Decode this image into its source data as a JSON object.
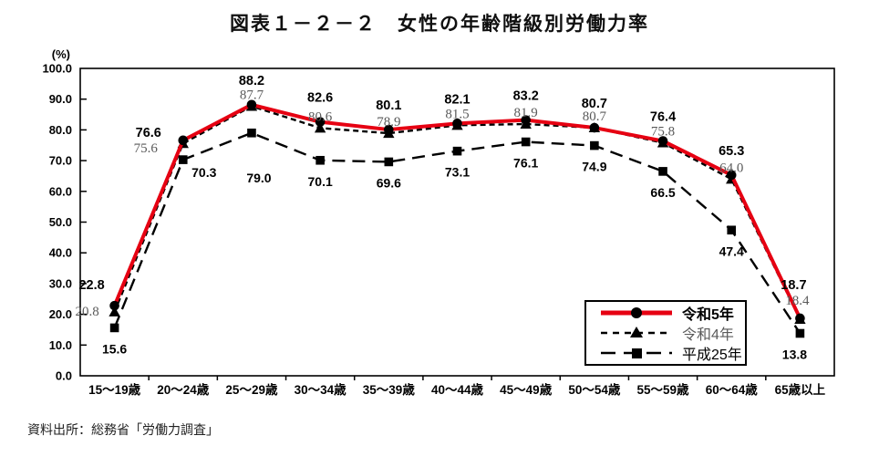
{
  "title": "図表１－２－２　女性の年齢階級別労働力率",
  "source": "資料出所：総務省「労働力調査」",
  "chart_data": {
    "type": "line",
    "title": "図表１－２－２　女性の年齢階級別労働力率",
    "unit_label": "(%)",
    "categories": [
      "15～19歳",
      "20～24歳",
      "25～29歳",
      "30～34歳",
      "35～39歳",
      "40～44歳",
      "45～49歳",
      "50～54歳",
      "55～59歳",
      "60～64歳",
      "65歳以上"
    ],
    "series": [
      {
        "name": "令和5年",
        "values": [
          22.8,
          76.6,
          88.2,
          82.6,
          80.1,
          82.1,
          83.2,
          80.7,
          76.4,
          65.3,
          18.7
        ],
        "line_color": "#e60012",
        "line_style": "solid",
        "marker": "circle",
        "marker_color": "#000000",
        "label_color": "#000000"
      },
      {
        "name": "令和4年",
        "values": [
          20.8,
          75.6,
          87.7,
          80.6,
          78.9,
          81.5,
          81.9,
          80.7,
          75.8,
          64.0,
          18.4
        ],
        "line_color": "#000000",
        "line_style": "short-dash",
        "marker": "triangle",
        "marker_color": "#000000",
        "label_color": "#5a5a5a"
      },
      {
        "name": "平成25年",
        "values": [
          15.6,
          70.3,
          79.0,
          70.1,
          69.6,
          73.1,
          76.1,
          74.9,
          66.5,
          47.4,
          13.8
        ],
        "line_color": "#000000",
        "line_style": "long-dash",
        "marker": "square",
        "marker_color": "#000000",
        "label_color": "#000000"
      }
    ],
    "ylim": [
      0,
      100
    ],
    "y_tick_step": 10,
    "y_tick_labels": [
      "0.0",
      "10.0",
      "20.0",
      "30.0",
      "40.0",
      "50.0",
      "60.0",
      "70.0",
      "80.0",
      "90.0",
      "100.0"
    ],
    "grid": false,
    "legend_position": "inset-bottom-right",
    "data_labels": true
  }
}
